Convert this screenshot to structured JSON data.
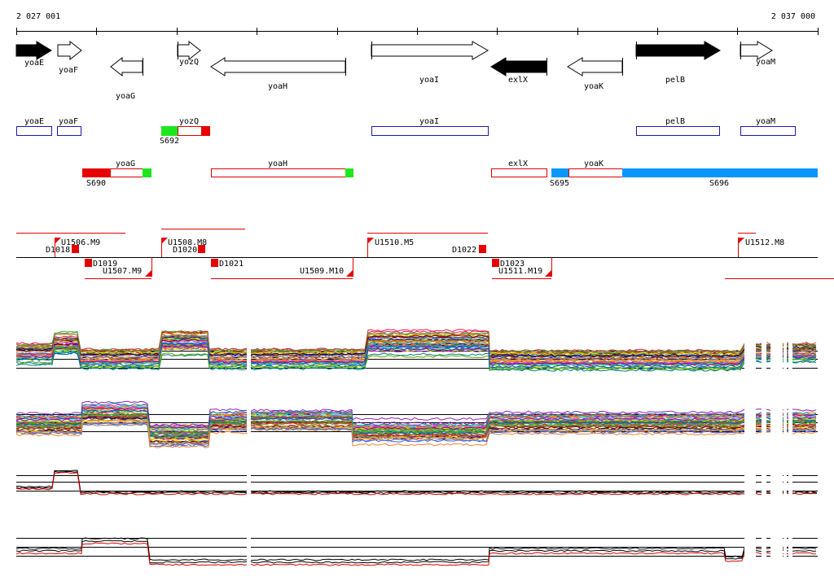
{
  "coordinates": {
    "start_label": "2 027 001",
    "end_label": "2 037 000"
  },
  "colors": {
    "forward_gene": "#ffffff",
    "filled_gene": "#000000",
    "annotation_blue": "#1a1ab0",
    "annotation_red": "#e00000",
    "signal_green": "#1ee61e",
    "signal_red": "#e60000",
    "signal_blue": "#0a96ff",
    "trace_black": "#000000",
    "trace_red": "#e00000"
  },
  "genes": [
    {
      "name": "yoaE",
      "strand": "+",
      "filled": true
    },
    {
      "name": "yoaF",
      "strand": "+",
      "filled": false
    },
    {
      "name": "yoaG",
      "strand": "-",
      "filled": false
    },
    {
      "name": "yozQ",
      "strand": "+",
      "filled": false
    },
    {
      "name": "yoaH",
      "strand": "-",
      "filled": false
    },
    {
      "name": "yoaI",
      "strand": "+",
      "filled": false
    },
    {
      "name": "exlX",
      "strand": "-",
      "filled": true
    },
    {
      "name": "yoaK",
      "strand": "-",
      "filled": false
    },
    {
      "name": "pelB",
      "strand": "+",
      "filled": true
    },
    {
      "name": "yoaM",
      "strand": "+",
      "filled": false
    }
  ],
  "annotation_boxes_row1": [
    "yoaE",
    "yoaF",
    "yozQ",
    "yoaI",
    "pelB",
    "yoaM"
  ],
  "annotation_boxes_row2": [
    "yoaG",
    "yoaH",
    "exlX",
    "yoaK"
  ],
  "signal_labels": [
    "S692",
    "S690",
    "S695",
    "S696"
  ],
  "transcript_labels": [
    "U1506.M9",
    "D1018",
    "U1508.M8",
    "D1020",
    "U1510.M5",
    "D1022",
    "U1512.M8",
    "D1019",
    "U1507.M9",
    "D1021",
    "U1509.M10",
    "D1023",
    "U1511.M19"
  ]
}
